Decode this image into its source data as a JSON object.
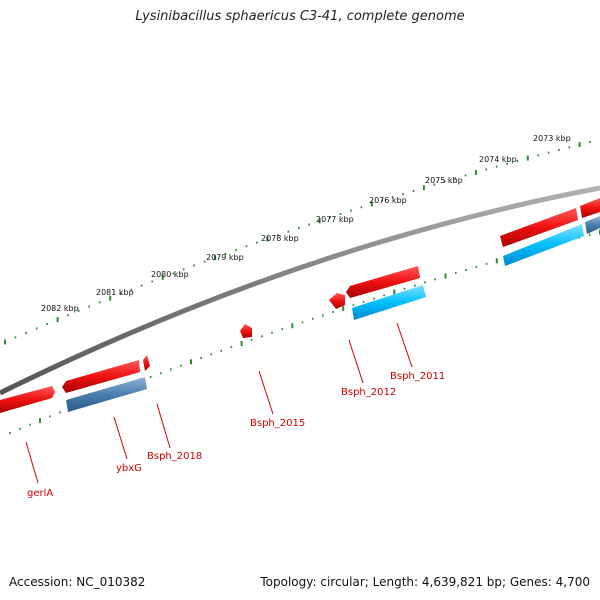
{
  "title": "Lysinibacillus sphaericus C3-41, complete genome",
  "accession": "Accession: NC_010382",
  "topology": "Topology: circular; Length: 4,639,821 bp; Genes: 4,700",
  "kbp_ticks": [
    "2073 kbp",
    "2074 kbp",
    "2075 kbp",
    "2076 kbp",
    "2077 kbp",
    "2078 kbp",
    "2079 kbp",
    "2080 kbp",
    "2081 kbp",
    "2082 kbp"
  ],
  "gene_labels": [
    "gerlA",
    "ybxG",
    "Bsph_2018",
    "Bsph_2015",
    "Bsph_2012",
    "Bsph_2011"
  ],
  "colors": {
    "backbone": "#7a7a7a",
    "tick": "#2e8b2e",
    "gene_red": "#ee1111",
    "cds_blue": "#00bfff",
    "cds_steel": "#4a7fb0",
    "label": "#cc0000"
  }
}
